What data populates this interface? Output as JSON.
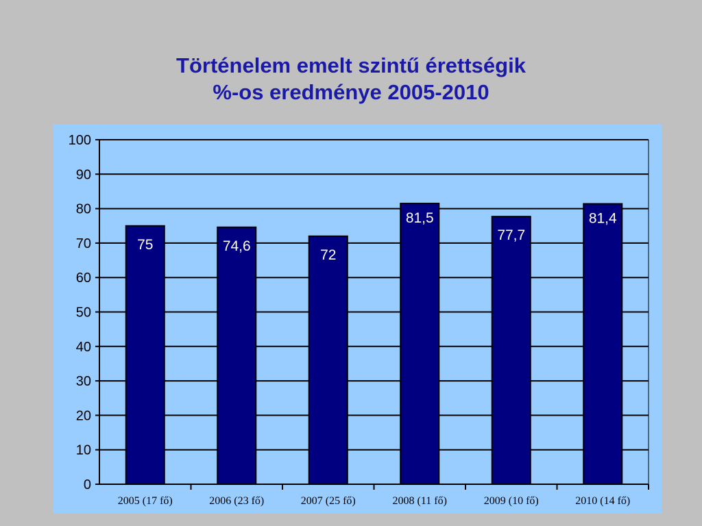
{
  "slide": {
    "title_line1": "Történelem emelt szintű érettségik",
    "title_line2": "%-os eredménye 2005-2010"
  },
  "colors": {
    "background": "#c0c0c0",
    "title": "#1a1aa6",
    "plot_area": "#99ccff",
    "bars": "#000080",
    "data_labels": "#ffffff",
    "gridlines": "#000000"
  },
  "chart_data": {
    "type": "bar",
    "title": "",
    "xlabel": "",
    "ylabel": "",
    "ylim": [
      0,
      100
    ],
    "yticks": [
      0,
      10,
      20,
      30,
      40,
      50,
      60,
      70,
      80,
      90,
      100
    ],
    "grid": true,
    "legend": "none",
    "categories": [
      "2005 (17 fő)",
      "2006 (23 fő)",
      "2007 (25 fő)",
      "2008 (11 fő)",
      "2009 (10 fő)",
      "2010 (14 fő)"
    ],
    "values": [
      75,
      74.6,
      72,
      81.5,
      77.7,
      81.4
    ],
    "data_labels": [
      "75",
      "74,6",
      "72",
      "81,5",
      "77,7",
      "81,4"
    ]
  }
}
